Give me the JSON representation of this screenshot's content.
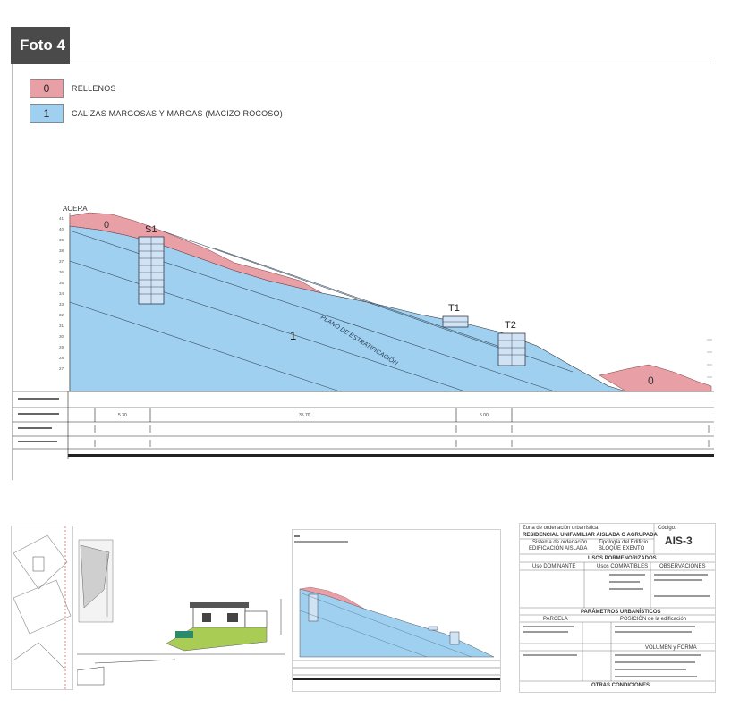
{
  "header": {
    "tag_label": "Foto 4"
  },
  "legend": [
    {
      "code": "0",
      "label": "RELLENOS",
      "color": "#e8a0a6"
    },
    {
      "code": "1",
      "label": "CALIZAS MARGOSAS Y MARGAS (MACIZO ROCOSO)",
      "color": "#9fd0f0"
    }
  ],
  "profile": {
    "acera_label": "ACERA",
    "fill_code_left": "0",
    "fill_code_right": "0",
    "rock_code": "1",
    "plane_label": "PLANO DE ESTRATIFICACIÓN",
    "boreholes": [
      "S1",
      "T1",
      "T2"
    ],
    "distances": [
      "5.30",
      "35.70",
      "5.00"
    ]
  },
  "thumbnails": {
    "zoning_sheet": {
      "zone_caption": "Zona de ordenación urbanística:",
      "zone_name": "RESIDENCIAL UNIFAMILIAR AISLADA O AGRUPADA",
      "code_caption": "Código:",
      "code": "AIS-3",
      "system_caption": "Sistema de ordenación",
      "system_value": "EDIFICACIÓN AISLADA",
      "typology_caption": "Tipología del Edificio",
      "typology_value": "BLOQUE EXENTO",
      "uses_title": "USOS PORMENORIZADOS",
      "uses_headers": [
        "Uso DOMINANTE",
        "Usos COMPATIBLES",
        "OBSERVACIONES"
      ],
      "params_title": "PARÁMETROS URBANÍSTICOS",
      "parcel_header": "PARCELA",
      "position_header": "POSICIÓN de la edificación",
      "volume_header": "VOLUMEN y FORMA",
      "other_title": "OTRAS CONDICIONES"
    }
  },
  "colors": {
    "fill": "#e8a0a6",
    "rock": "#9fd0f0",
    "tag_bg": "#4a4a4a"
  }
}
